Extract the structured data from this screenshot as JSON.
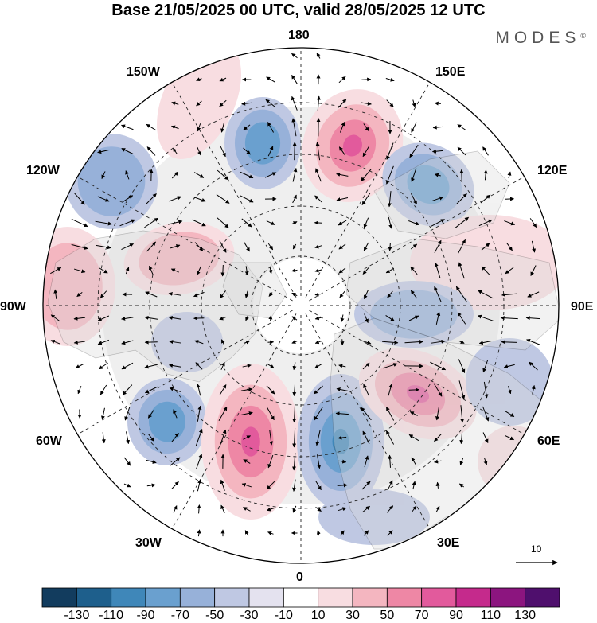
{
  "header": {
    "title": "Base 21/05/2025 00 UTC, valid 28/05/2025 12 UTC",
    "brand": "MODES",
    "brand_mark": "©"
  },
  "longitude_labels": {
    "lon_180": "180",
    "lon_150e": "150E",
    "lon_120e": "120E",
    "lon_90e": "90E",
    "lon_60e": "60E",
    "lon_30e": "30E",
    "lon_0": "0",
    "lon_30w": "30W",
    "lon_60w": "60W",
    "lon_90w": "90W",
    "lon_120w": "120W",
    "lon_150w": "150W"
  },
  "reference_vector": {
    "value": "10"
  },
  "colorbar": {
    "ticks": [
      "-130",
      "-110",
      "-90",
      "-70",
      "-50",
      "-30",
      "-10",
      "10",
      "30",
      "50",
      "70",
      "90",
      "110",
      "130"
    ],
    "colors": [
      "#123c5e",
      "#1e5f8c",
      "#3f87b9",
      "#6aa0cf",
      "#97b1d9",
      "#bfc8e3",
      "#e4e2ef",
      "#ffffff",
      "#f8dde1",
      "#f4b6c0",
      "#ee87a5",
      "#e25a9c",
      "#c52a8c",
      "#8c157f",
      "#4f0f6d"
    ]
  },
  "map": {
    "projection": "north-polar-stereographic",
    "field": "anomaly shading with wind vectors",
    "colors": {
      "pos_weak": "#f8dde1",
      "pos_mid": "#f4b6c0",
      "pos_strong": "#ee87a5",
      "pos_max": "#e25a9c",
      "neg_weak": "#bfc8e3",
      "neg_mid": "#97b1d9",
      "neg_strong": "#6aa0cf",
      "neg_max": "#3f87b9",
      "neutral": "#e8e8e8",
      "land": "#d9d9d9"
    }
  }
}
